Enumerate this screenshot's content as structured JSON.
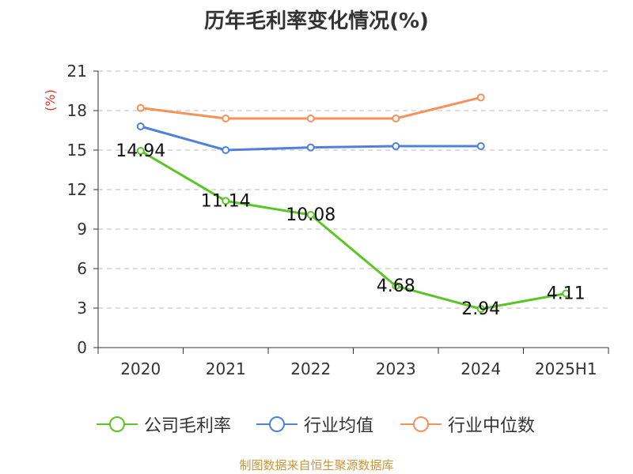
{
  "title": "历年毛利率变化情况(%)",
  "source": "制图数据来自恒生聚源数据库",
  "chart_data": {
    "type": "line",
    "title": "历年毛利率变化情况(%)",
    "ylabel": "(%)",
    "xlabel": "",
    "categories": [
      "2020",
      "2021",
      "2022",
      "2023",
      "2024",
      "2025H1"
    ],
    "ylim": [
      0,
      21
    ],
    "yticks": [
      0,
      3,
      6,
      9,
      12,
      15,
      18,
      21
    ],
    "grid": true,
    "legend_position": "bottom",
    "series": [
      {
        "name": "公司毛利率",
        "color": "#5ac523",
        "values": [
          14.94,
          11.14,
          10.08,
          4.68,
          2.94,
          4.11
        ],
        "labels": [
          "14.94",
          "11.14",
          "10.08",
          "4.68",
          "2.94",
          "4.11"
        ]
      },
      {
        "name": "行业均值",
        "color": "#4f81dc",
        "values": [
          16.8,
          15.0,
          15.2,
          15.3,
          15.3,
          null
        ]
      },
      {
        "name": "行业中位数",
        "color": "#f5915a",
        "values": [
          18.2,
          17.4,
          17.4,
          17.4,
          19.0,
          null
        ]
      }
    ]
  }
}
